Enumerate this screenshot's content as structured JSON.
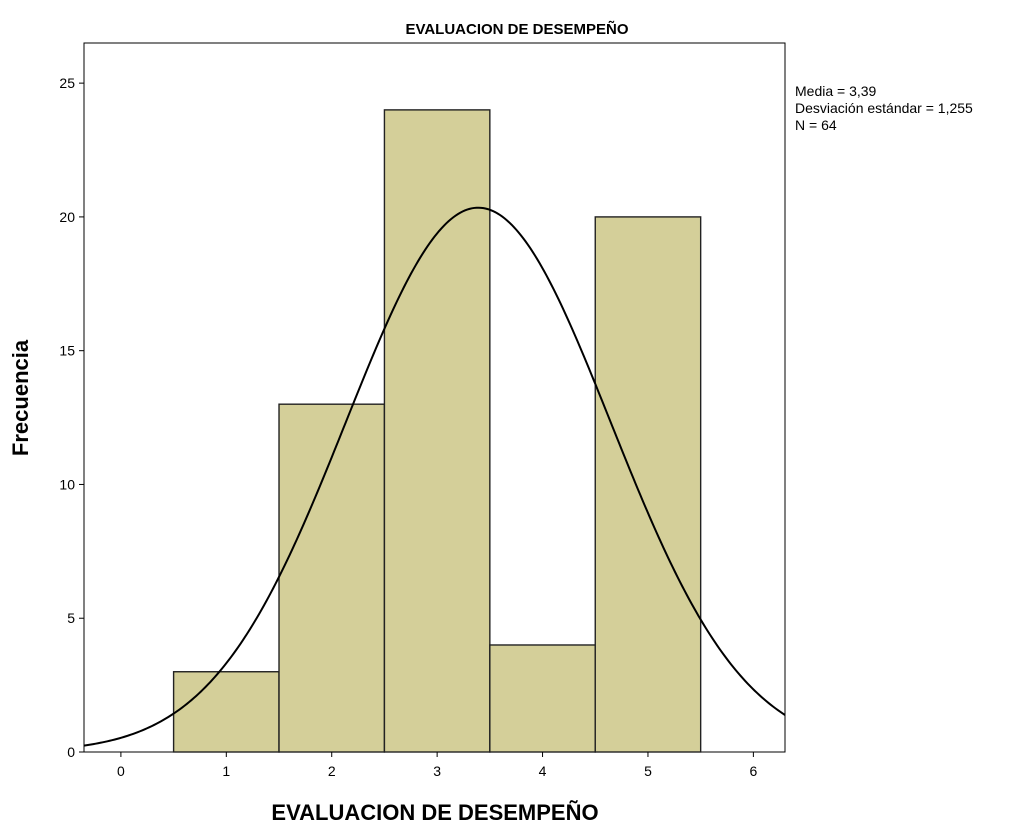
{
  "chart_data": {
    "type": "bar",
    "title": "EVALUACION DE DESEMPEÑO",
    "xlabel": "EVALUACION DE DESEMPEÑO",
    "ylabel": "Frecuencia",
    "categories": [
      "1",
      "2",
      "3",
      "4",
      "5"
    ],
    "x": [
      1,
      2,
      3,
      4,
      5
    ],
    "values": [
      3,
      13,
      24,
      4,
      20
    ],
    "xlim": [
      -0.35,
      6.3
    ],
    "ylim": [
      0,
      26.5
    ],
    "x_ticks": [
      0,
      1,
      2,
      3,
      4,
      5,
      6
    ],
    "x_tick_labels": [
      "0",
      "1",
      "2",
      "3",
      "4",
      "5",
      "6"
    ],
    "y_ticks": [
      0,
      5,
      10,
      15,
      20,
      25
    ],
    "y_tick_labels": [
      "0",
      "5",
      "10",
      "15",
      "20",
      "25"
    ],
    "grid": false,
    "bar_color": "#d4cf99",
    "bar_edge_color": "#222222",
    "normal_curve": {
      "mean": 3.39,
      "sd": 1.255,
      "n": 64,
      "bin_width": 1
    },
    "stats": {
      "position": "outside-right-top",
      "lines": [
        "Media = 3,39",
        "Desviación estándar = 1,255",
        "N = 64"
      ]
    }
  }
}
